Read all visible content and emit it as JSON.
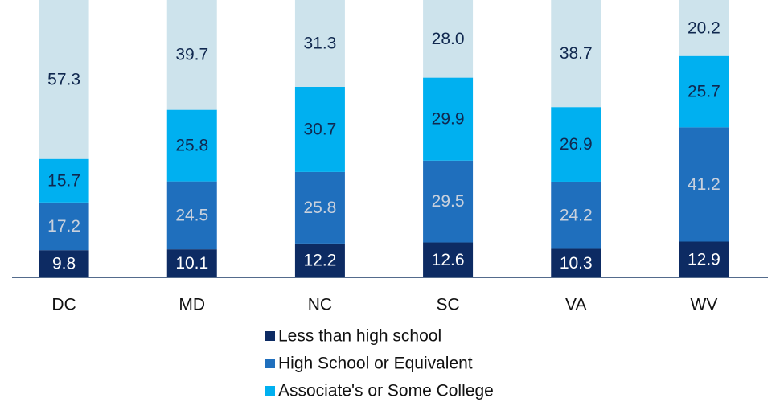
{
  "chart_data": {
    "type": "stacked_bar",
    "categories": [
      "DC",
      "MD",
      "NC",
      "SC",
      "VA",
      "WV"
    ],
    "ylim": [
      0,
      100
    ],
    "series": [
      {
        "name": "Less than high school",
        "color": "#0d2b63",
        "label_color": "#ffffff",
        "values": [
          9.8,
          10.1,
          12.2,
          12.6,
          10.3,
          12.9
        ]
      },
      {
        "name": "High School or Equivalent",
        "color": "#1f6fbd",
        "label_color": "#c9d1dd",
        "values": [
          17.2,
          24.5,
          25.8,
          29.5,
          24.2,
          41.2
        ]
      },
      {
        "name": "Associate's or Some College",
        "color": "#00b0f0",
        "label_color": "#10284f",
        "values": [
          15.7,
          25.8,
          30.7,
          29.9,
          26.9,
          25.7
        ]
      },
      {
        "color": "#cde3ec",
        "label_color": "#10284f",
        "values": [
          57.3,
          39.7,
          31.3,
          28,
          38.7,
          20.2
        ],
        "value_labels": [
          "57.3",
          "39.7",
          "31.3",
          "28.0",
          "38.7",
          "20.2"
        ]
      }
    ],
    "legend": "bottom"
  }
}
